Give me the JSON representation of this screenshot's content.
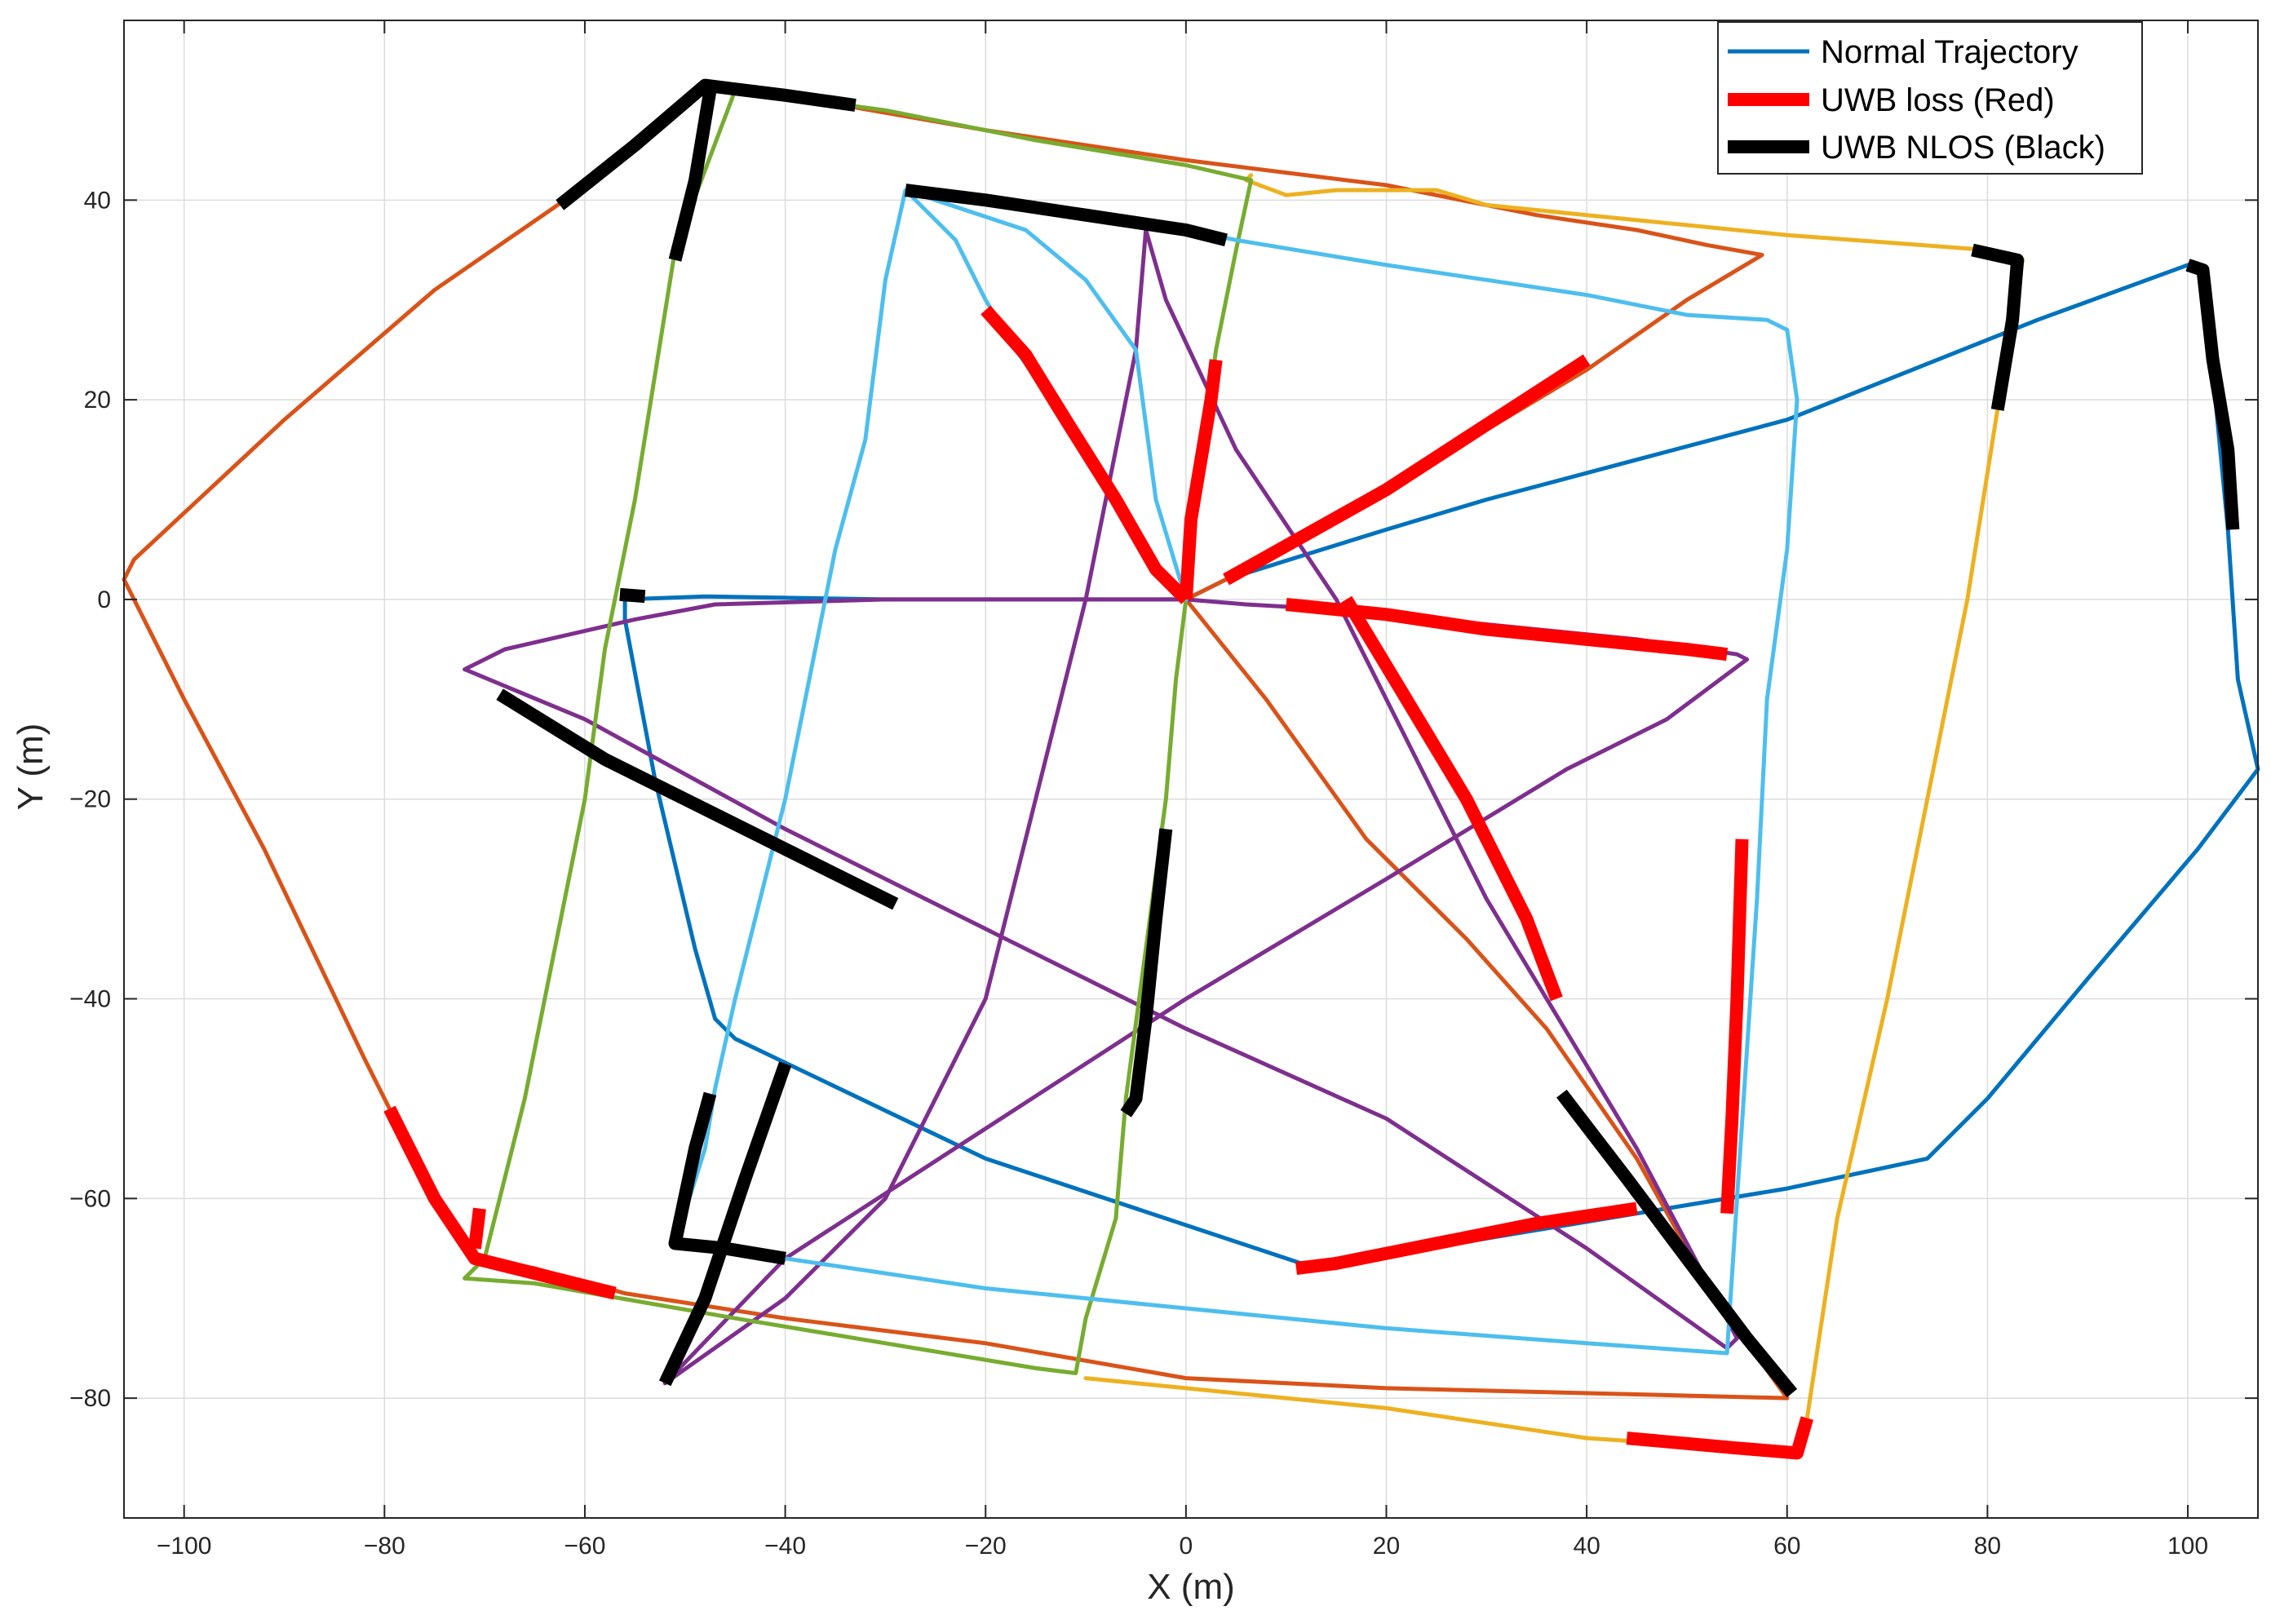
{
  "chart_data": {
    "type": "line",
    "title": "",
    "xlabel": "X (m)",
    "ylabel": "Y (m)",
    "xlim": [
      -106,
      107
    ],
    "ylim": [
      -92,
      58
    ],
    "xticks": [
      -100,
      -80,
      -60,
      -40,
      -20,
      0,
      20,
      40,
      60,
      80,
      100
    ],
    "yticks": [
      -80,
      -60,
      -40,
      -20,
      0,
      20,
      40
    ],
    "xtick_labels": [
      "−100",
      "−80",
      "−60",
      "−40",
      "−20",
      "0",
      "20",
      "40",
      "60",
      "80",
      "100"
    ],
    "ytick_labels": [
      "−80",
      "−60",
      "−40",
      "−20",
      "0",
      "20",
      "40"
    ],
    "grid": true,
    "legend_position": "top-right",
    "legend": [
      {
        "label": "Normal Trajectory",
        "color": "#0072BD",
        "style": "thin"
      },
      {
        "label": "UWB loss (Red)",
        "color": "#FF0000",
        "style": "thick"
      },
      {
        "label": "UWB NLOS (Black)",
        "color": "#000000",
        "style": "thick"
      }
    ],
    "series": [
      {
        "color": "#0072BD",
        "points": [
          [
            0,
            0
          ],
          [
            4,
            2
          ],
          [
            12,
            4.5
          ],
          [
            20,
            7
          ],
          [
            30,
            10
          ],
          [
            45,
            14
          ],
          [
            60,
            18
          ],
          [
            70,
            22
          ],
          [
            85,
            28
          ],
          [
            100,
            33.5
          ],
          [
            101.5,
            33
          ],
          [
            104,
            7
          ],
          [
            105,
            -8
          ],
          [
            107,
            -17
          ],
          [
            101,
            -25
          ],
          [
            90,
            -38
          ],
          [
            80,
            -50
          ],
          [
            74,
            -56
          ],
          [
            60,
            -59
          ],
          [
            45,
            -61.5
          ],
          [
            30,
            -64
          ],
          [
            13,
            -67
          ],
          [
            10,
            -66
          ],
          [
            -20,
            -56
          ],
          [
            -45,
            -44
          ],
          [
            -47,
            -42
          ],
          [
            -49,
            -35
          ],
          [
            -53,
            -18
          ],
          [
            -56,
            -2
          ],
          [
            -56,
            0
          ],
          [
            -48,
            0.3
          ],
          [
            -30,
            0
          ],
          [
            -10,
            0
          ],
          [
            0,
            0
          ]
        ]
      },
      {
        "color": "#D95319",
        "points": [
          [
            0,
            0
          ],
          [
            8,
            -10
          ],
          [
            18,
            -24
          ],
          [
            28,
            -34
          ],
          [
            36,
            -43
          ],
          [
            45,
            -56
          ],
          [
            50,
            -65
          ],
          [
            55,
            -73
          ],
          [
            60,
            -80
          ],
          [
            40,
            -79.5
          ],
          [
            20,
            -79
          ],
          [
            10,
            -78.5
          ],
          [
            0,
            -78
          ],
          [
            -20,
            -74.5
          ],
          [
            -40,
            -72
          ],
          [
            -56,
            -69.5
          ],
          [
            -65,
            -67
          ],
          [
            -71,
            -66
          ],
          [
            -75,
            -60
          ],
          [
            -82,
            -46
          ],
          [
            -92,
            -25
          ],
          [
            -100,
            -10
          ],
          [
            -106,
            2
          ],
          [
            -105,
            4
          ],
          [
            -90,
            18
          ],
          [
            -75,
            31
          ],
          [
            -62,
            40
          ],
          [
            -55,
            45
          ],
          [
            -48,
            51
          ],
          [
            -40,
            50.5
          ],
          [
            -20,
            47
          ],
          [
            0,
            44
          ],
          [
            20,
            41.5
          ],
          [
            35,
            38.5
          ],
          [
            45,
            37
          ],
          [
            52,
            35.5
          ],
          [
            57.5,
            34.5
          ],
          [
            50,
            30
          ],
          [
            40,
            23
          ],
          [
            25,
            14
          ],
          [
            12,
            6
          ],
          [
            4,
            2
          ],
          [
            0,
            0
          ]
        ]
      },
      {
        "color": "#EDB120",
        "points": [
          [
            -10,
            -78
          ],
          [
            0,
            -79
          ],
          [
            20,
            -81
          ],
          [
            40,
            -84
          ],
          [
            55,
            -85
          ],
          [
            61,
            -85.5
          ],
          [
            62,
            -82
          ],
          [
            65,
            -62
          ],
          [
            70,
            -40
          ],
          [
            75,
            -15
          ],
          [
            78,
            0
          ],
          [
            81,
            19
          ],
          [
            82.5,
            28
          ],
          [
            83.5,
            34
          ],
          [
            80,
            35
          ],
          [
            60,
            36.5
          ],
          [
            40,
            38.5
          ],
          [
            30,
            39.5
          ],
          [
            25,
            41
          ],
          [
            15,
            41
          ],
          [
            10,
            40.5
          ],
          [
            6,
            42
          ],
          [
            6.5,
            42.5
          ]
        ]
      },
      {
        "color": "#7E2F8E",
        "points": [
          [
            0,
            0
          ],
          [
            6,
            -0.5
          ],
          [
            15,
            -1
          ],
          [
            30,
            -2.5
          ],
          [
            45,
            -4
          ],
          [
            55,
            -5.5
          ],
          [
            56,
            -6
          ],
          [
            48,
            -12
          ],
          [
            38,
            -17
          ],
          [
            20,
            -28
          ],
          [
            0,
            -40
          ],
          [
            -20,
            -53
          ],
          [
            -40,
            -66
          ],
          [
            -52,
            -78.5
          ],
          [
            -40,
            -70
          ],
          [
            -30,
            -60
          ],
          [
            -20,
            -40
          ],
          [
            -10,
            0
          ],
          [
            -5,
            25
          ],
          [
            -4,
            37
          ],
          [
            -2,
            30
          ],
          [
            5,
            15
          ],
          [
            15,
            0
          ],
          [
            30,
            -30
          ],
          [
            45,
            -55
          ],
          [
            55,
            -74
          ],
          [
            54,
            -75
          ],
          [
            40,
            -65
          ],
          [
            20,
            -52
          ],
          [
            0,
            -43
          ],
          [
            -20,
            -33
          ],
          [
            -40,
            -23
          ],
          [
            -60,
            -12
          ],
          [
            -72,
            -7
          ],
          [
            -68,
            -5
          ],
          [
            -55,
            -2
          ],
          [
            -47,
            -0.5
          ],
          [
            -30,
            0
          ],
          [
            -10,
            0
          ],
          [
            0,
            0
          ]
        ]
      },
      {
        "color": "#77AC30",
        "points": [
          [
            0,
            0
          ],
          [
            1,
            10
          ],
          [
            3,
            25
          ],
          [
            5,
            35
          ],
          [
            6.5,
            42
          ],
          [
            0,
            43.5
          ],
          [
            -15,
            46
          ],
          [
            -30,
            49
          ],
          [
            -45,
            51
          ],
          [
            -51,
            35
          ],
          [
            -55,
            10
          ],
          [
            -58,
            -5
          ],
          [
            -60,
            -20
          ],
          [
            -63,
            -35
          ],
          [
            -66,
            -50
          ],
          [
            -70,
            -66
          ],
          [
            -72,
            -68
          ],
          [
            -65,
            -68.5
          ],
          [
            -45,
            -72
          ],
          [
            -30,
            -74.5
          ],
          [
            -15,
            -77
          ],
          [
            -11,
            -77.5
          ],
          [
            -10,
            -72
          ],
          [
            -7,
            -62
          ],
          [
            -6,
            -50
          ],
          [
            -4,
            -35
          ],
          [
            -2,
            -20
          ],
          [
            -1,
            -8
          ],
          [
            0,
            0
          ]
        ]
      },
      {
        "color": "#4DBEEE",
        "points": [
          [
            -28,
            41
          ],
          [
            -23,
            36
          ],
          [
            -20,
            30
          ],
          [
            -17,
            25
          ],
          [
            -12,
            18
          ],
          [
            -7,
            10
          ],
          [
            -3,
            3
          ],
          [
            0,
            0
          ],
          [
            -3,
            10
          ],
          [
            -5,
            25
          ],
          [
            -10,
            32
          ],
          [
            -16,
            37
          ],
          [
            -22,
            39
          ],
          [
            -28,
            41
          ],
          [
            -30,
            32
          ],
          [
            -32,
            16
          ],
          [
            -35,
            5
          ],
          [
            -40,
            -20
          ],
          [
            -45,
            -40
          ],
          [
            -47,
            -49
          ],
          [
            -48,
            -55
          ],
          [
            -51,
            -64.5
          ],
          [
            -40,
            -66
          ],
          [
            -20,
            -69
          ],
          [
            0,
            -71
          ],
          [
            20,
            -73
          ],
          [
            40,
            -74.5
          ],
          [
            54,
            -75.5
          ],
          [
            55,
            -60
          ],
          [
            57,
            -30
          ],
          [
            58,
            -10
          ],
          [
            60,
            5
          ],
          [
            61,
            20
          ],
          [
            60,
            27
          ],
          [
            58,
            28
          ],
          [
            50,
            28.5
          ],
          [
            40,
            30.5
          ],
          [
            30,
            32
          ],
          [
            20,
            33.5
          ],
          [
            5,
            36
          ],
          [
            0,
            37
          ],
          [
            -28,
            41
          ]
        ]
      }
    ],
    "uwb_loss_segments": [
      [
        [
          0,
          0
        ],
        [
          -3,
          3
        ],
        [
          -7,
          10
        ],
        [
          -12,
          18
        ],
        [
          -16,
          24.5
        ],
        [
          -20,
          29
        ]
      ],
      [
        [
          0,
          0
        ],
        [
          0.5,
          8
        ],
        [
          1.5,
          14
        ],
        [
          2.5,
          20
        ],
        [
          3,
          24
        ]
      ],
      [
        [
          4,
          2
        ],
        [
          12,
          6.5
        ],
        [
          20,
          11
        ],
        [
          30,
          17.5
        ],
        [
          40,
          24
        ]
      ],
      [
        [
          10,
          -0.5
        ],
        [
          20,
          -1.5
        ],
        [
          30,
          -3
        ],
        [
          40,
          -4
        ],
        [
          50,
          -5
        ],
        [
          54,
          -5.5
        ]
      ],
      [
        [
          16,
          0
        ],
        [
          22,
          -10
        ],
        [
          28,
          -20
        ],
        [
          34,
          -32
        ],
        [
          37,
          -40
        ]
      ],
      [
        [
          55.5,
          -24
        ],
        [
          55,
          -40
        ],
        [
          54.5,
          -52
        ],
        [
          54,
          -61.5
        ]
      ],
      [
        [
          11,
          -67
        ],
        [
          15,
          -66.5
        ],
        [
          25,
          -64.5
        ],
        [
          35,
          -62.5
        ],
        [
          45,
          -61
        ]
      ],
      [
        [
          -79.5,
          -51
        ],
        [
          -75,
          -60
        ],
        [
          -71,
          -66
        ],
        [
          -65,
          -67.5
        ],
        [
          -57,
          -69.5
        ]
      ],
      [
        [
          -70.5,
          -61
        ],
        [
          -71,
          -65
        ]
      ],
      [
        [
          44,
          -84
        ],
        [
          55,
          -85
        ],
        [
          61,
          -85.5
        ],
        [
          62,
          -82
        ]
      ]
    ],
    "uwb_nlos_segments": [
      [
        [
          -62.5,
          39.5
        ],
        [
          -55,
          45.5
        ],
        [
          -48,
          51.5
        ],
        [
          -40,
          50.5
        ],
        [
          -33,
          49.5
        ]
      ],
      [
        [
          -47.5,
          51
        ],
        [
          -49,
          42
        ],
        [
          -51,
          34
        ]
      ],
      [
        [
          -28,
          41
        ],
        [
          -20,
          40
        ],
        [
          -10,
          38.5
        ],
        [
          0,
          37
        ],
        [
          4,
          36
        ]
      ],
      [
        [
          78.5,
          35
        ],
        [
          83,
          34
        ],
        [
          82.5,
          28
        ],
        [
          81,
          19
        ]
      ],
      [
        [
          100,
          33.5
        ],
        [
          101.5,
          33
        ],
        [
          102.5,
          24
        ],
        [
          104,
          15
        ],
        [
          104.5,
          7
        ]
      ],
      [
        [
          -56.5,
          0.5
        ],
        [
          -54,
          0.3
        ]
      ],
      [
        [
          -68.5,
          -9.5
        ],
        [
          -58,
          -16
        ],
        [
          -48,
          -21
        ],
        [
          -38,
          -26
        ],
        [
          -29,
          -30.5
        ]
      ],
      [
        [
          -47.5,
          -49.5
        ],
        [
          -49,
          -55
        ],
        [
          -51,
          -64.5
        ],
        [
          -46,
          -65
        ],
        [
          -40,
          -66
        ]
      ],
      [
        [
          -52,
          -78.5
        ],
        [
          -48,
          -70
        ],
        [
          -44,
          -58
        ],
        [
          -40,
          -46.5
        ]
      ],
      [
        [
          -2,
          -23
        ],
        [
          -3,
          -32
        ],
        [
          -4,
          -42
        ],
        [
          -5,
          -50
        ],
        [
          -6,
          -51.5
        ]
      ],
      [
        [
          37.5,
          -49.5
        ],
        [
          44,
          -58
        ],
        [
          50,
          -66
        ],
        [
          56,
          -74
        ],
        [
          60.5,
          -79.5
        ]
      ]
    ]
  }
}
